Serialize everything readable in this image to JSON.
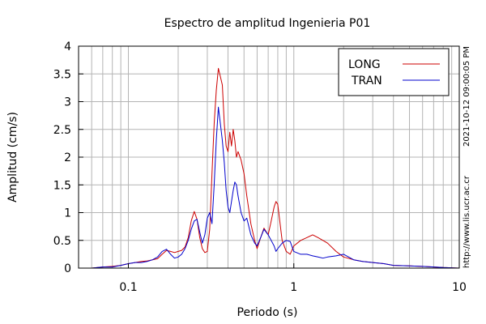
{
  "chart_data": {
    "type": "line",
    "title": "Espectro de amplitud Ingenieria P01",
    "xlabel": "Periodo (s)",
    "ylabel": "Amplitud (cm/s)",
    "x_scale": "log",
    "xlim": [
      0.05,
      10
    ],
    "ylim": [
      0,
      4
    ],
    "x_ticks": [
      {
        "value": 0.1,
        "label": "0.1"
      },
      {
        "value": 1,
        "label": "1"
      },
      {
        "value": 10,
        "label": "10"
      }
    ],
    "y_ticks": [
      {
        "value": 0,
        "label": "0"
      },
      {
        "value": 0.5,
        "label": "0.5"
      },
      {
        "value": 1,
        "label": "1"
      },
      {
        "value": 1.5,
        "label": "1.5"
      },
      {
        "value": 2,
        "label": "2"
      },
      {
        "value": 2.5,
        "label": "2.5"
      },
      {
        "value": 3,
        "label": "3"
      },
      {
        "value": 3.5,
        "label": "3.5"
      },
      {
        "value": 4,
        "label": "4"
      }
    ],
    "grid": true,
    "legend_position": "top-right",
    "series": [
      {
        "name": "LONG",
        "color": "#cc0000",
        "x": [
          0.05,
          0.06,
          0.07,
          0.08,
          0.09,
          0.1,
          0.11,
          0.12,
          0.13,
          0.14,
          0.15,
          0.16,
          0.17,
          0.18,
          0.19,
          0.2,
          0.21,
          0.22,
          0.23,
          0.24,
          0.25,
          0.26,
          0.27,
          0.28,
          0.29,
          0.3,
          0.31,
          0.32,
          0.33,
          0.34,
          0.35,
          0.36,
          0.37,
          0.38,
          0.39,
          0.4,
          0.41,
          0.42,
          0.43,
          0.44,
          0.45,
          0.46,
          0.48,
          0.5,
          0.52,
          0.55,
          0.58,
          0.6,
          0.63,
          0.66,
          0.7,
          0.73,
          0.76,
          0.78,
          0.8,
          0.85,
          0.9,
          0.95,
          1.0,
          1.1,
          1.2,
          1.3,
          1.4,
          1.5,
          1.6,
          1.8,
          2.0,
          2.3,
          2.6,
          3.0,
          3.5,
          4.0,
          5.0,
          6.0,
          7.0,
          8.0,
          10.0
        ],
        "y": [
          0.0,
          0.0,
          0.02,
          0.03,
          0.05,
          0.08,
          0.1,
          0.12,
          0.13,
          0.15,
          0.17,
          0.25,
          0.32,
          0.3,
          0.28,
          0.3,
          0.32,
          0.38,
          0.55,
          0.85,
          1.02,
          0.88,
          0.55,
          0.35,
          0.28,
          0.3,
          0.7,
          1.7,
          2.6,
          3.2,
          3.6,
          3.45,
          3.3,
          2.6,
          2.2,
          2.1,
          2.45,
          2.2,
          2.5,
          2.3,
          2.0,
          2.1,
          1.95,
          1.7,
          1.3,
          0.8,
          0.5,
          0.35,
          0.55,
          0.72,
          0.6,
          0.85,
          1.1,
          1.2,
          1.15,
          0.5,
          0.3,
          0.25,
          0.4,
          0.5,
          0.55,
          0.6,
          0.55,
          0.5,
          0.45,
          0.3,
          0.2,
          0.15,
          0.12,
          0.1,
          0.08,
          0.05,
          0.04,
          0.03,
          0.02,
          0.01,
          0.0
        ]
      },
      {
        "name": "TRAN",
        "color": "#0000cc",
        "x": [
          0.05,
          0.06,
          0.07,
          0.08,
          0.09,
          0.1,
          0.11,
          0.12,
          0.13,
          0.14,
          0.15,
          0.16,
          0.17,
          0.18,
          0.19,
          0.2,
          0.21,
          0.22,
          0.23,
          0.24,
          0.25,
          0.26,
          0.27,
          0.28,
          0.29,
          0.3,
          0.31,
          0.32,
          0.33,
          0.34,
          0.35,
          0.36,
          0.37,
          0.38,
          0.39,
          0.4,
          0.41,
          0.42,
          0.43,
          0.44,
          0.45,
          0.46,
          0.48,
          0.5,
          0.52,
          0.55,
          0.58,
          0.6,
          0.63,
          0.66,
          0.7,
          0.73,
          0.76,
          0.78,
          0.8,
          0.85,
          0.9,
          0.95,
          1.0,
          1.1,
          1.2,
          1.3,
          1.4,
          1.5,
          1.6,
          1.8,
          2.0,
          2.3,
          2.6,
          3.0,
          3.5,
          4.0,
          5.0,
          6.0,
          7.0,
          8.0,
          10.0
        ],
        "y": [
          0.0,
          0.0,
          0.02,
          0.02,
          0.05,
          0.08,
          0.1,
          0.1,
          0.12,
          0.15,
          0.2,
          0.3,
          0.34,
          0.25,
          0.18,
          0.2,
          0.25,
          0.35,
          0.5,
          0.7,
          0.85,
          0.88,
          0.65,
          0.45,
          0.6,
          0.9,
          1.0,
          0.8,
          1.5,
          2.3,
          2.9,
          2.6,
          2.3,
          1.9,
          1.4,
          1.1,
          1.0,
          1.2,
          1.4,
          1.55,
          1.5,
          1.3,
          1.0,
          0.85,
          0.9,
          0.6,
          0.45,
          0.4,
          0.55,
          0.7,
          0.6,
          0.5,
          0.4,
          0.3,
          0.35,
          0.45,
          0.5,
          0.48,
          0.3,
          0.25,
          0.25,
          0.22,
          0.2,
          0.18,
          0.2,
          0.22,
          0.25,
          0.15,
          0.12,
          0.1,
          0.08,
          0.05,
          0.04,
          0.03,
          0.02,
          0.01,
          0.0
        ]
      }
    ]
  },
  "side_labels": {
    "timestamp": "2021-10-12 09:00:05 PM",
    "url": "http://www.lis.ucr.ac.cr"
  },
  "colors": {
    "grid": "#b4b4b4",
    "frame": "#000000"
  }
}
